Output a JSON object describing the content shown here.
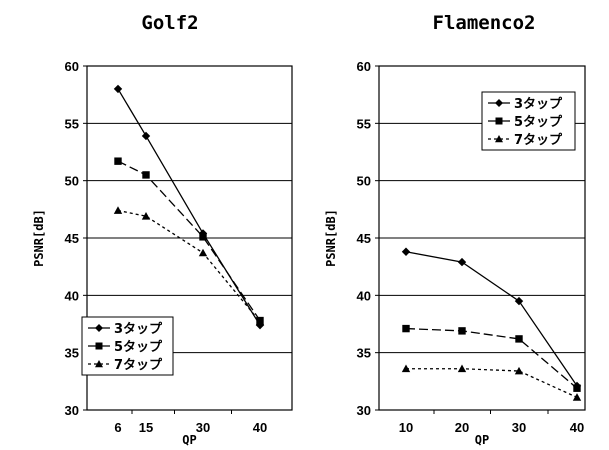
{
  "chart_data": [
    {
      "type": "line",
      "title": "Golf2",
      "xlabel": "QP",
      "ylabel": "PSNR[dB]",
      "categories": [
        "6",
        "15",
        "30",
        "40"
      ],
      "ylim": [
        30,
        60
      ],
      "yticks": [
        30,
        35,
        40,
        45,
        50,
        55,
        60
      ],
      "grid": "horizontal",
      "legend_position": "bottom-left",
      "series": [
        {
          "name": "3タップ",
          "values": [
            58.0,
            53.9,
            45.4,
            37.4
          ],
          "marker": "diamond",
          "line": "solid"
        },
        {
          "name": "5タップ",
          "values": [
            51.7,
            50.5,
            45.1,
            37.8
          ],
          "marker": "square",
          "line": "dashed"
        },
        {
          "name": "7タップ",
          "values": [
            47.4,
            46.9,
            43.7,
            37.7
          ],
          "marker": "triangle",
          "line": "dotted"
        }
      ]
    },
    {
      "type": "line",
      "title": "Flamenco2",
      "xlabel": "QP",
      "ylabel": "PSNR[dB]",
      "categories": [
        "10",
        "20",
        "30",
        "40"
      ],
      "ylim": [
        30,
        60
      ],
      "yticks": [
        30,
        35,
        40,
        45,
        50,
        55,
        60
      ],
      "grid": "horizontal",
      "legend_position": "top-right",
      "series": [
        {
          "name": "3タップ",
          "values": [
            43.8,
            42.9,
            39.5,
            32.1
          ],
          "marker": "diamond",
          "line": "solid"
        },
        {
          "name": "5タップ",
          "values": [
            37.1,
            36.9,
            36.2,
            31.9
          ],
          "marker": "square",
          "line": "dashed"
        },
        {
          "name": "7タップ",
          "values": [
            33.6,
            33.6,
            33.4,
            31.1
          ],
          "marker": "triangle",
          "line": "dotted"
        }
      ]
    }
  ]
}
